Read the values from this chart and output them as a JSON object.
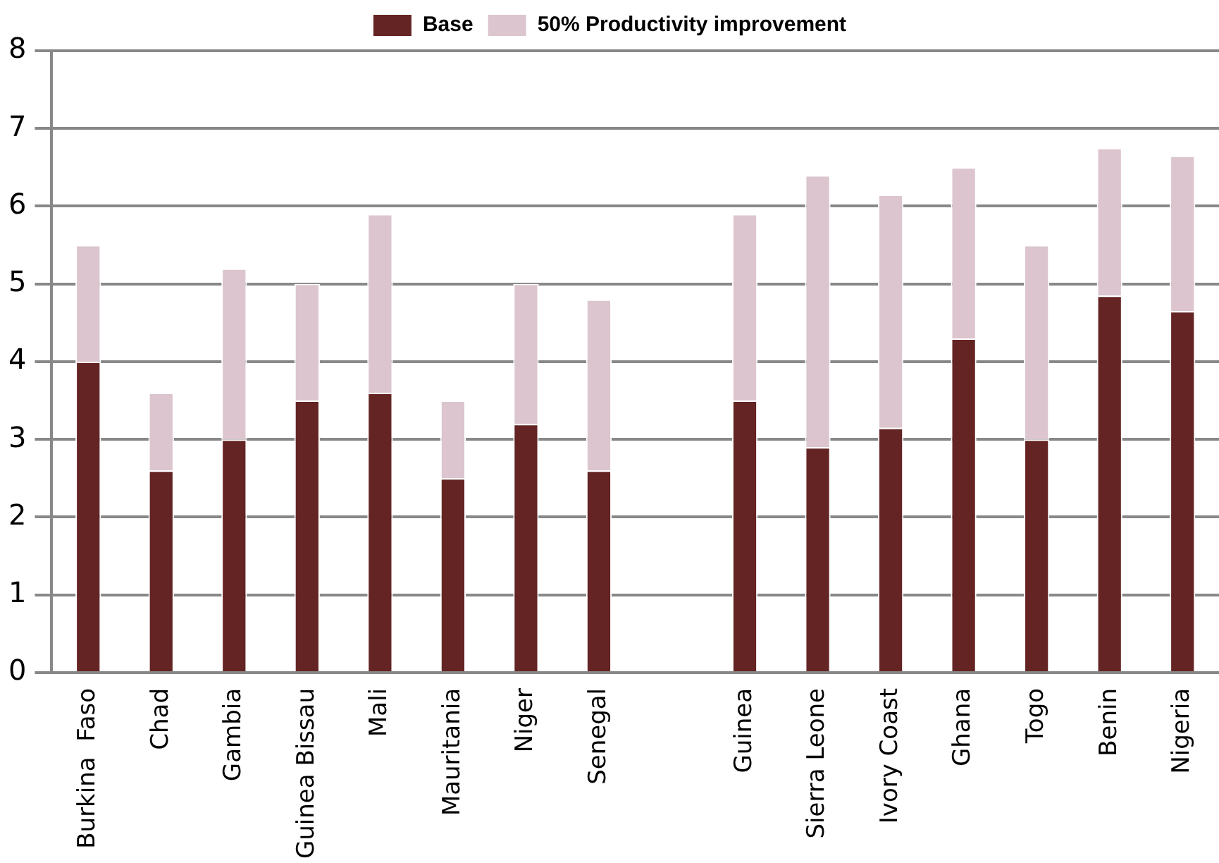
{
  "chart_data": {
    "type": "bar",
    "stacked": true,
    "categories": [
      "Burkina  Faso",
      "Chad",
      "Gambia",
      "Guinea Bissau",
      "Mali",
      "Mauritania",
      "Niger",
      "Senegal",
      null,
      "Guinea",
      "Sierra Leone",
      "Ivory Coast",
      "Ghana",
      "Togo",
      "Benin",
      "Nigeria"
    ],
    "series": [
      {
        "name": "Base",
        "color": "#632423",
        "values": [
          4.0,
          2.6,
          3.0,
          3.5,
          3.6,
          2.5,
          3.2,
          2.6,
          null,
          3.5,
          2.9,
          3.15,
          4.3,
          3.0,
          4.85,
          4.65
        ]
      },
      {
        "name": "50% Productivity improvement",
        "color": "#dcc5ce",
        "values": [
          1.5,
          1.0,
          2.2,
          1.5,
          2.3,
          1.0,
          1.8,
          2.2,
          null,
          2.4,
          3.5,
          3.0,
          2.2,
          2.5,
          1.9,
          2.0
        ]
      }
    ],
    "ylim": [
      0,
      8
    ],
    "yticks": [
      0,
      1,
      2,
      3,
      4,
      5,
      6,
      7,
      8
    ],
    "grid": "y",
    "legend": "top"
  }
}
